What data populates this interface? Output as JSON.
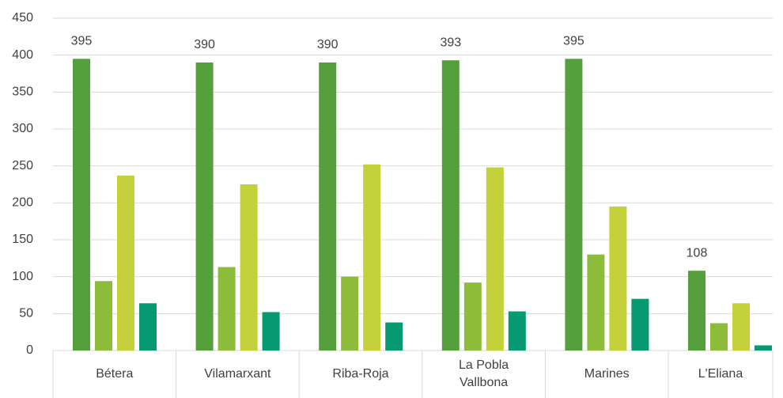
{
  "chart_data": {
    "type": "bar",
    "categories": [
      "Bétera",
      "Vilamarxant",
      "Riba-Roja",
      "La Pobla Vallbona",
      "Marines",
      "L'Eliana"
    ],
    "series": [
      {
        "color": "#55a03c",
        "values": [
          395,
          390,
          390,
          393,
          395,
          108
        ],
        "data_labels": true
      },
      {
        "color": "#8dbb3a",
        "values": [
          94,
          113,
          100,
          92,
          130,
          37
        ]
      },
      {
        "color": "#c4d13a",
        "values": [
          237,
          225,
          252,
          248,
          195,
          64
        ]
      },
      {
        "color": "#079a72",
        "values": [
          64,
          52,
          38,
          53,
          70,
          7
        ]
      }
    ],
    "ylim": [
      0,
      450
    ],
    "yticks": [
      0,
      50,
      100,
      150,
      200,
      250,
      300,
      350,
      400,
      450
    ],
    "grid": true
  }
}
